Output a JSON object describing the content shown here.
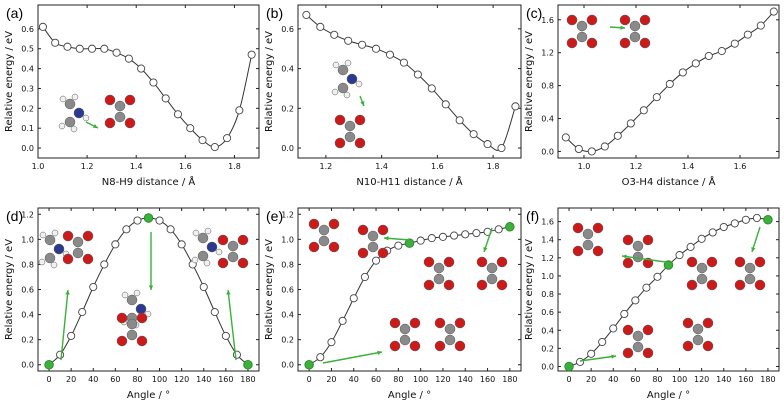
{
  "colors": {
    "curve": "#333333",
    "marker_fill": "#ffffff",
    "marker_stroke": "#444444",
    "highlight": "#3bb03b",
    "arrow": "#3bb03b"
  },
  "chart_data": [
    {
      "panel_label": "(a)",
      "type": "line",
      "xlabel": "N8-H9 distance / Å",
      "ylabel": "Relative energy / eV",
      "xlim": [
        1.0,
        1.9
      ],
      "ylim": [
        -0.05,
        0.72
      ],
      "xticks": [
        1.0,
        1.2,
        1.4,
        1.6,
        1.8
      ],
      "xtick_labels": [
        "1.0",
        "1.2",
        "1.4",
        "1.6",
        "1.8"
      ],
      "yticks": [
        0.0,
        0.1,
        0.2,
        0.3,
        0.4,
        0.5,
        0.6
      ],
      "ytick_labels": [
        "0.0",
        "0.1",
        "0.2",
        "0.3",
        "0.4",
        "0.5",
        "0.6"
      ],
      "x": [
        1.02,
        1.07,
        1.12,
        1.17,
        1.22,
        1.27,
        1.32,
        1.37,
        1.42,
        1.47,
        1.52,
        1.57,
        1.62,
        1.67,
        1.72,
        1.77,
        1.82,
        1.87
      ],
      "y": [
        0.61,
        0.53,
        0.51,
        0.5,
        0.5,
        0.5,
        0.48,
        0.45,
        0.4,
        0.33,
        0.25,
        0.17,
        0.1,
        0.04,
        0.005,
        0.05,
        0.19,
        0.47
      ],
      "highlight_points": []
    },
    {
      "panel_label": "(b)",
      "type": "line",
      "xlabel": "N10-H11 distance / Å",
      "ylabel": "Relative energy / eV",
      "xlim": [
        1.1,
        1.9
      ],
      "ylim": [
        -0.05,
        0.72
      ],
      "xticks": [
        1.2,
        1.4,
        1.6,
        1.8
      ],
      "xtick_labels": [
        "1.2",
        "1.4",
        "1.6",
        "1.8"
      ],
      "yticks": [
        0.0,
        0.2,
        0.4,
        0.6
      ],
      "ytick_labels": [
        "0.0",
        "0.2",
        "0.4",
        "0.6"
      ],
      "x": [
        1.13,
        1.18,
        1.23,
        1.28,
        1.33,
        1.38,
        1.43,
        1.48,
        1.53,
        1.58,
        1.63,
        1.68,
        1.73,
        1.78,
        1.83,
        1.88
      ],
      "y": [
        0.67,
        0.61,
        0.57,
        0.54,
        0.52,
        0.5,
        0.47,
        0.43,
        0.37,
        0.3,
        0.22,
        0.14,
        0.07,
        0.02,
        0.0,
        0.21
      ],
      "highlight_points": []
    },
    {
      "panel_label": "(c)",
      "type": "line",
      "xlabel": "O3-H4 distance / Å",
      "ylabel": "Relative energy / eV",
      "xlim": [
        0.9,
        1.75
      ],
      "ylim": [
        -0.08,
        1.78
      ],
      "xticks": [
        1.0,
        1.2,
        1.4,
        1.6
      ],
      "xtick_labels": [
        "1.0",
        "1.2",
        "1.4",
        "1.6"
      ],
      "yticks": [
        0.0,
        0.4,
        0.8,
        1.2,
        1.6
      ],
      "ytick_labels": [
        "0.0",
        "0.4",
        "0.8",
        "1.2",
        "1.6"
      ],
      "x": [
        0.93,
        0.98,
        1.03,
        1.08,
        1.13,
        1.18,
        1.23,
        1.28,
        1.33,
        1.38,
        1.43,
        1.48,
        1.53,
        1.58,
        1.63,
        1.68,
        1.73
      ],
      "y": [
        0.17,
        0.03,
        0.0,
        0.06,
        0.19,
        0.34,
        0.5,
        0.66,
        0.82,
        0.96,
        1.07,
        1.16,
        1.22,
        1.31,
        1.42,
        1.53,
        1.7
      ],
      "highlight_points": []
    },
    {
      "panel_label": "(d)",
      "type": "line",
      "xlabel": "Angle / °",
      "ylabel": "Relative energy / eV",
      "xlim": [
        -10,
        190
      ],
      "ylim": [
        -0.05,
        1.25
      ],
      "xticks": [
        0,
        20,
        40,
        60,
        80,
        100,
        120,
        140,
        160,
        180
      ],
      "xtick_labels": [
        "0",
        "20",
        "40",
        "60",
        "80",
        "100",
        "120",
        "140",
        "160",
        "180"
      ],
      "yticks": [
        0.0,
        0.2,
        0.4,
        0.6,
        0.8,
        1.0,
        1.2
      ],
      "ytick_labels": [
        "0.0",
        "0.2",
        "0.4",
        "0.6",
        "0.8",
        "1.0",
        "1.2"
      ],
      "x": [
        0,
        10,
        20,
        30,
        40,
        50,
        60,
        70,
        80,
        90,
        100,
        110,
        120,
        130,
        140,
        150,
        160,
        170,
        180
      ],
      "y": [
        0.0,
        0.08,
        0.23,
        0.42,
        0.62,
        0.8,
        0.96,
        1.08,
        1.15,
        1.17,
        1.15,
        1.08,
        0.96,
        0.8,
        0.62,
        0.42,
        0.23,
        0.08,
        0.0
      ],
      "highlight_points": [
        0,
        9,
        18
      ]
    },
    {
      "panel_label": "(e)",
      "type": "line",
      "xlabel": "Angle / °",
      "ylabel": "Relative energy / eV",
      "xlim": [
        -10,
        190
      ],
      "ylim": [
        -0.05,
        1.25
      ],
      "xticks": [
        0,
        20,
        40,
        60,
        80,
        100,
        120,
        140,
        160,
        180
      ],
      "xtick_labels": [
        "0",
        "20",
        "40",
        "60",
        "80",
        "100",
        "120",
        "140",
        "160",
        "180"
      ],
      "yticks": [
        0.0,
        0.2,
        0.4,
        0.6,
        0.8,
        1.0,
        1.2
      ],
      "ytick_labels": [
        "0.0",
        "0.2",
        "0.4",
        "0.6",
        "0.8",
        "1.0",
        "1.2"
      ],
      "x": [
        0,
        10,
        20,
        30,
        40,
        50,
        60,
        70,
        80,
        90,
        100,
        110,
        120,
        130,
        140,
        150,
        160,
        170,
        180
      ],
      "y": [
        0.0,
        0.06,
        0.18,
        0.35,
        0.53,
        0.7,
        0.83,
        0.91,
        0.95,
        0.97,
        0.99,
        1.01,
        1.02,
        1.03,
        1.04,
        1.05,
        1.06,
        1.08,
        1.1
      ],
      "highlight_points": [
        0,
        9,
        18
      ]
    },
    {
      "panel_label": "(f)",
      "type": "line",
      "xlabel": "Angle / °",
      "ylabel": "Relative energy / eV",
      "xlim": [
        -10,
        190
      ],
      "ylim": [
        -0.05,
        1.75
      ],
      "xticks": [
        0,
        20,
        40,
        60,
        80,
        100,
        120,
        140,
        160,
        180
      ],
      "xtick_labels": [
        "0",
        "20",
        "40",
        "60",
        "80",
        "100",
        "120",
        "140",
        "160",
        "180"
      ],
      "yticks": [
        0.0,
        0.2,
        0.4,
        0.6,
        0.8,
        1.0,
        1.2,
        1.4,
        1.6
      ],
      "ytick_labels": [
        "0.0",
        "0.2",
        "0.4",
        "0.6",
        "0.8",
        "1.0",
        "1.2",
        "1.4",
        "1.6"
      ],
      "x": [
        0,
        10,
        20,
        30,
        40,
        50,
        60,
        70,
        80,
        90,
        100,
        110,
        120,
        130,
        140,
        150,
        160,
        170,
        180
      ],
      "y": [
        0.0,
        0.05,
        0.14,
        0.27,
        0.42,
        0.58,
        0.73,
        0.87,
        0.99,
        1.12,
        1.23,
        1.32,
        1.41,
        1.48,
        1.54,
        1.58,
        1.62,
        1.64,
        1.62
      ],
      "highlight_points": [
        0,
        9,
        18
      ]
    }
  ]
}
